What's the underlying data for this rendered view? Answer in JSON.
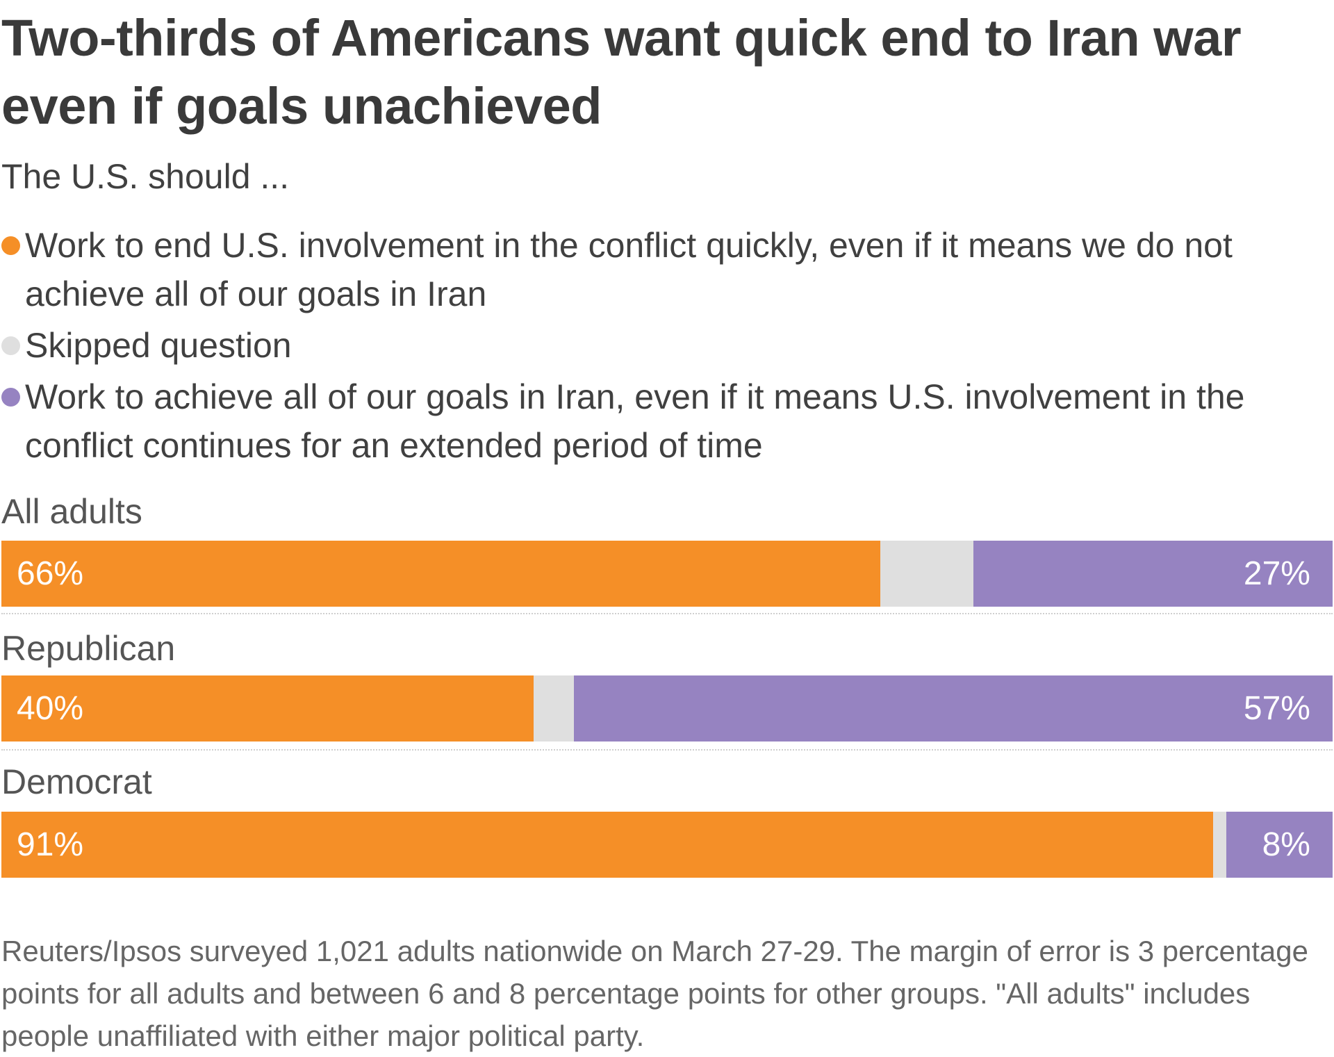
{
  "title": "Two-thirds of Americans want quick end to Iran war even if goals unachieved",
  "subtitle": "The U.S. should ...",
  "colors": {
    "end_quickly": "#F58F27",
    "skipped": "#DFDFDF",
    "achieve_goals": "#9683C1"
  },
  "chart_data": {
    "type": "bar",
    "orientation": "horizontal-stacked-100",
    "title": "Two-thirds of Americans want quick end to Iran war even if goals unachieved",
    "subtitle": "The U.S. should ...",
    "legend": [
      {
        "key": "end_quickly",
        "label": "Work to end U.S. involvement in the conflict quickly, even if it means we do not achieve all of our goals in Iran"
      },
      {
        "key": "skipped",
        "label": "Skipped question"
      },
      {
        "key": "achieve_goals",
        "label": "Work to achieve all of our goals in Iran, even if it means U.S. involvement in the conflict continues for an extended period of time"
      }
    ],
    "legend_placement": "top",
    "categories": [
      "All adults",
      "Republican",
      "Democrat"
    ],
    "series": [
      {
        "name": "end_quickly",
        "values": [
          66,
          40,
          91
        ],
        "labels": [
          "66%",
          "40%",
          "91%"
        ]
      },
      {
        "name": "skipped",
        "values": [
          7,
          3,
          1
        ]
      },
      {
        "name": "achieve_goals",
        "values": [
          27,
          57,
          8
        ],
        "labels": [
          "27%",
          "57%",
          "8%"
        ]
      }
    ],
    "xlim": [
      0,
      100
    ],
    "grid": false
  },
  "footnote": "Reuters/Ipsos surveyed 1,021 adults nationwide on March 27-29. The margin of error is 3 percentage points for all adults and between 6 and 8 percentage points for other groups. \"All adults\" includes people unaffiliated with either major political party."
}
